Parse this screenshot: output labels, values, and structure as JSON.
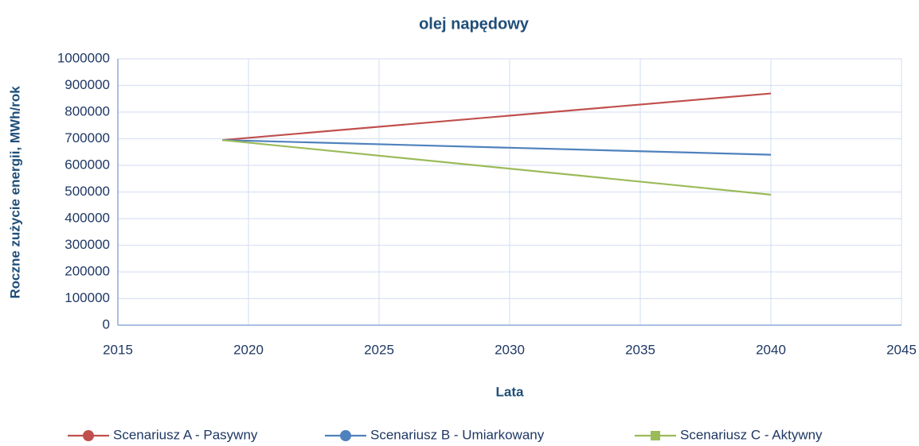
{
  "chart_data": {
    "type": "line",
    "title": "olej napędowy",
    "x_label": "Lata",
    "y_label": "Roczne zużycie energii, MWh/rok",
    "x": [
      2019,
      2040
    ],
    "series": [
      {
        "name": "Scenariusz A - Pasywny",
        "color": "#c0504d",
        "values": [
          695000,
          870000
        ]
      },
      {
        "name": "Scenariusz B - Umiarkowany",
        "color": "#4f81bd",
        "values": [
          695000,
          640000
        ]
      },
      {
        "name": "Scenariusz C - Aktywny",
        "color": "#9bbb59",
        "values": [
          695000,
          490000
        ]
      }
    ],
    "xlim": [
      2015,
      2045
    ],
    "xticks": [
      2015,
      2020,
      2025,
      2030,
      2035,
      2040,
      2045
    ],
    "ylim": [
      0,
      1000000
    ],
    "yticks": [
      0,
      100000,
      200000,
      300000,
      400000,
      500000,
      600000,
      700000,
      800000,
      900000,
      1000000
    ],
    "grid": true,
    "legend": "bottom"
  }
}
